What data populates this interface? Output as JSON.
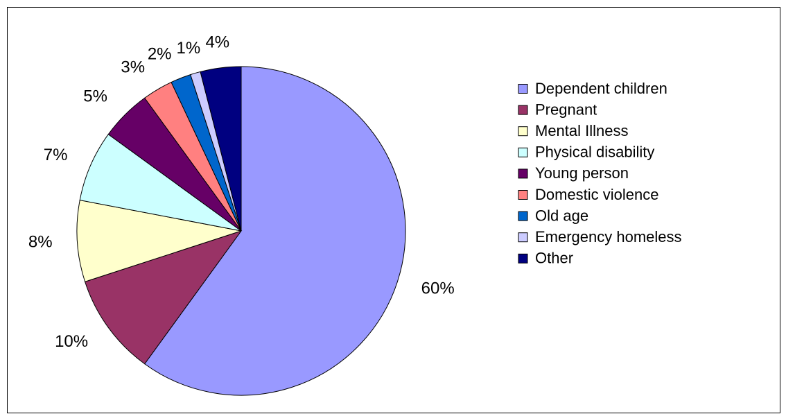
{
  "chart_data": {
    "type": "pie",
    "categories": [
      "Dependent children",
      "Pregnant",
      "Mental Illness",
      "Physical disability",
      "Young person",
      "Domestic violence",
      "Old age",
      "Emergency homeless",
      "Other"
    ],
    "values": [
      60,
      10,
      8,
      7,
      5,
      3,
      2,
      1,
      4
    ],
    "value_labels": [
      "60%",
      "10%",
      "8%",
      "7%",
      "5%",
      "3%",
      "2%",
      "1%",
      "4%"
    ],
    "colors": [
      "#9999ff",
      "#993366",
      "#ffffcc",
      "#ccffff",
      "#660066",
      "#ff8080",
      "#0066cc",
      "#ccccff",
      "#000080"
    ],
    "legend": "right"
  }
}
